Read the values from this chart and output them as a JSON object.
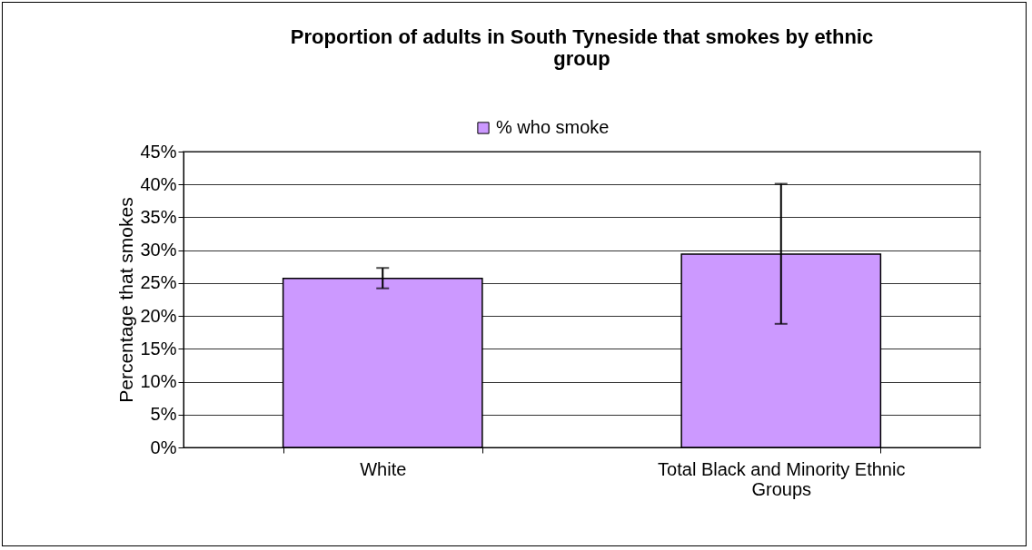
{
  "chart_data": {
    "type": "bar",
    "title": "Proportion of adults in South Tyneside that smokes by ethnic group",
    "ylabel": "Percentage that smokes",
    "categories": [
      "White",
      "Total Black and Minority Ethnic Groups"
    ],
    "series": [
      {
        "name": "% who smoke",
        "color": "#cc99ff",
        "values": [
          25.7,
          29.4
        ],
        "errors": [
          [
            24.2,
            27.3
          ],
          [
            18.8,
            40.1
          ]
        ]
      }
    ],
    "ylim": [
      0,
      45
    ],
    "yticks": [
      {
        "value": 0,
        "label": "0%"
      },
      {
        "value": 5,
        "label": "5%"
      },
      {
        "value": 10,
        "label": "10%"
      },
      {
        "value": 15,
        "label": "15%"
      },
      {
        "value": 20,
        "label": "20%"
      },
      {
        "value": 25,
        "label": "25%"
      },
      {
        "value": 30,
        "label": "30%"
      },
      {
        "value": 35,
        "label": "35%"
      },
      {
        "value": 40,
        "label": "40%"
      },
      {
        "value": 45,
        "label": "45%"
      }
    ],
    "grid": "y",
    "legend": "top"
  }
}
